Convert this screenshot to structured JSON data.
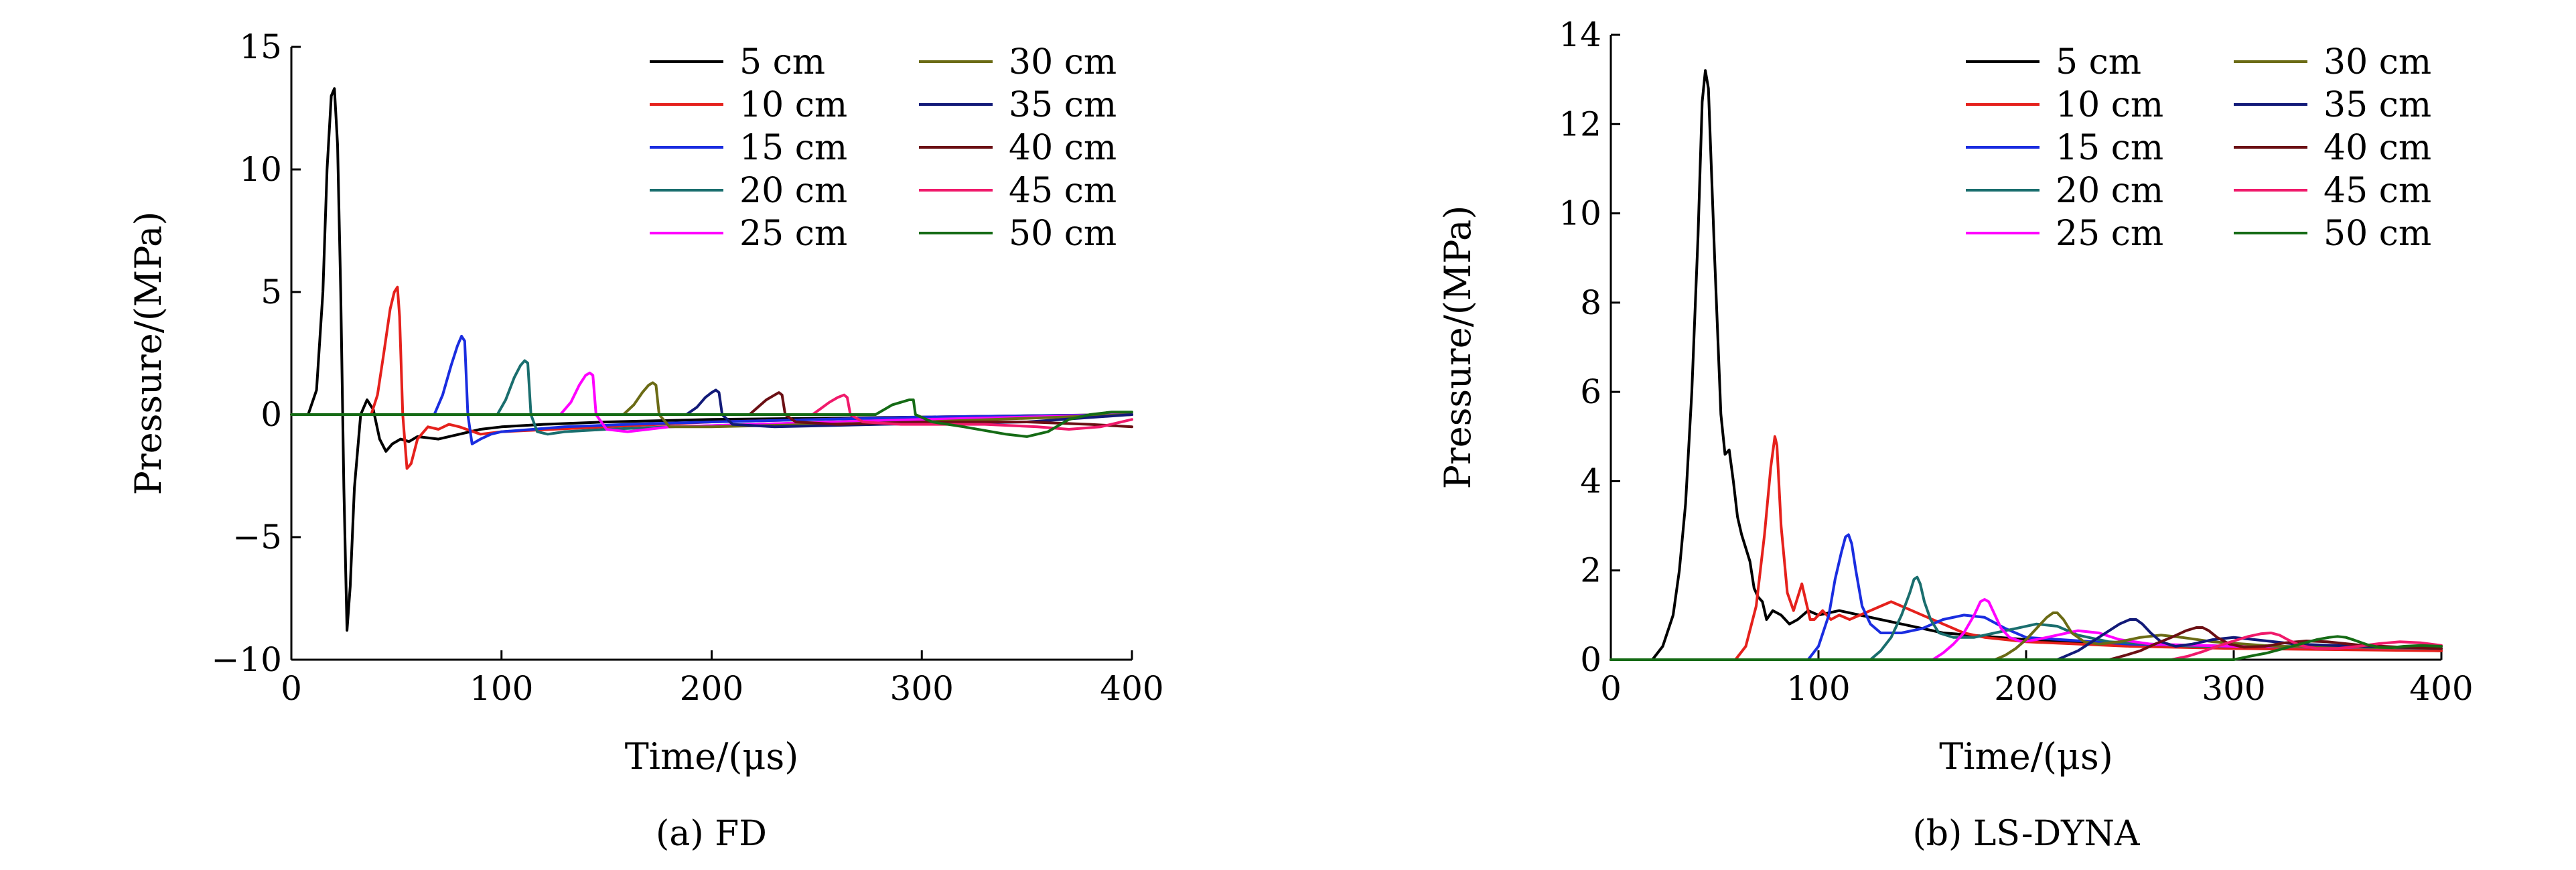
{
  "chart_data": [
    {
      "type": "line",
      "title": "(a) FD",
      "xlabel": "Time/(μs)",
      "ylabel": "Pressure/(MPa)",
      "xlim": [
        0,
        400
      ],
      "ylim": [
        -10,
        15
      ],
      "xticks": [
        0,
        100,
        200,
        300,
        400
      ],
      "yticks": [
        -10,
        -5,
        0,
        5,
        10,
        15
      ],
      "xtick_labels": [
        "0",
        "100",
        "200",
        "300",
        "400"
      ],
      "ytick_labels": [
        "−10",
        "−5",
        "0",
        "5",
        "10",
        "15"
      ],
      "legend_position": "top-right",
      "series": [
        {
          "name": "5 cm",
          "color": "#000000",
          "x": [
            0,
            8,
            12,
            15,
            17,
            19,
            20.5,
            22,
            23.5,
            25,
            26.5,
            28,
            30,
            33,
            36,
            39,
            42,
            45,
            48,
            52,
            56,
            60,
            70,
            80,
            90,
            100,
            120,
            150,
            200,
            250,
            300,
            350,
            400
          ],
          "y": [
            0,
            0,
            1,
            5,
            10,
            13,
            13.3,
            11,
            5,
            -3,
            -8.8,
            -7,
            -3,
            0,
            0.6,
            0.2,
            -1,
            -1.5,
            -1.2,
            -1,
            -1.1,
            -0.9,
            -1,
            -0.8,
            -0.6,
            -0.5,
            -0.4,
            -0.3,
            -0.2,
            -0.15,
            -0.1,
            -0.05,
            0
          ]
        },
        {
          "name": "10 cm",
          "color": "#e5211c",
          "x": [
            0,
            38,
            41,
            44,
            47,
            49,
            50.5,
            51.5,
            53,
            55,
            57,
            60,
            65,
            70,
            75,
            80,
            90,
            100,
            150,
            200,
            300,
            400
          ],
          "y": [
            0,
            0,
            0.8,
            2.5,
            4.3,
            5,
            5.2,
            4,
            0,
            -2.2,
            -2,
            -1,
            -0.5,
            -0.6,
            -0.4,
            -0.5,
            -0.8,
            -0.7,
            -0.5,
            -0.3,
            -0.1,
            0
          ]
        },
        {
          "name": "15 cm",
          "color": "#1a2de0",
          "x": [
            0,
            68,
            72,
            76,
            79,
            81,
            82.5,
            84,
            86,
            90,
            95,
            100,
            130,
            160,
            200,
            300,
            400
          ],
          "y": [
            0,
            0,
            0.8,
            2,
            2.8,
            3.2,
            3,
            0,
            -1.2,
            -1,
            -0.8,
            -0.7,
            -0.5,
            -0.4,
            -0.3,
            -0.1,
            0
          ]
        },
        {
          "name": "20 cm",
          "color": "#1a6e6e",
          "x": [
            0,
            98,
            102,
            106,
            109,
            111,
            112.5,
            114,
            117,
            122,
            130,
            150,
            180,
            220,
            300,
            400
          ],
          "y": [
            0,
            0,
            0.6,
            1.5,
            2,
            2.2,
            2.1,
            0,
            -0.7,
            -0.8,
            -0.7,
            -0.6,
            -0.5,
            -0.4,
            -0.2,
            0
          ]
        },
        {
          "name": "25 cm",
          "color": "#ff00ff",
          "x": [
            0,
            128,
            133,
            137,
            140,
            142,
            143.5,
            145,
            150,
            160,
            180,
            220,
            300,
            400
          ],
          "y": [
            0,
            0,
            0.5,
            1.2,
            1.6,
            1.7,
            1.6,
            0,
            -0.6,
            -0.7,
            -0.5,
            -0.4,
            -0.2,
            0
          ]
        },
        {
          "name": "30 cm",
          "color": "#6b6b15",
          "x": [
            0,
            158,
            163,
            167,
            170,
            172,
            173.5,
            175,
            180,
            200,
            250,
            300,
            400
          ],
          "y": [
            0,
            0,
            0.4,
            0.9,
            1.2,
            1.3,
            1.2,
            0,
            -0.5,
            -0.5,
            -0.4,
            -0.3,
            0
          ]
        },
        {
          "name": "35 cm",
          "color": "#121a78",
          "x": [
            0,
            188,
            193,
            197,
            200,
            202,
            203.5,
            205,
            210,
            230,
            280,
            350,
            400
          ],
          "y": [
            0,
            0,
            0.3,
            0.7,
            0.9,
            1,
            0.9,
            0,
            -0.4,
            -0.5,
            -0.4,
            -0.3,
            0
          ]
        },
        {
          "name": "40 cm",
          "color": "#6b0f14",
          "x": [
            0,
            218,
            222,
            226,
            230,
            232,
            233.5,
            235,
            240,
            260,
            300,
            350,
            380,
            400
          ],
          "y": [
            0,
            0,
            0.3,
            0.6,
            0.8,
            0.9,
            0.8,
            0,
            -0.3,
            -0.4,
            -0.3,
            -0.3,
            -0.4,
            -0.5
          ]
        },
        {
          "name": "45 cm",
          "color": "#f01a6b",
          "x": [
            0,
            248,
            252,
            256,
            260,
            263,
            264.5,
            266,
            272,
            290,
            330,
            355,
            370,
            385,
            400
          ],
          "y": [
            0,
            0,
            0.25,
            0.5,
            0.7,
            0.8,
            0.7,
            0,
            -0.3,
            -0.4,
            -0.4,
            -0.5,
            -0.6,
            -0.5,
            -0.2
          ]
        },
        {
          "name": "50 cm",
          "color": "#156b15",
          "x": [
            0,
            278,
            282,
            286,
            290,
            294,
            296,
            297,
            305,
            320,
            340,
            350,
            360,
            370,
            380,
            390,
            400
          ],
          "y": [
            0,
            0,
            0.2,
            0.4,
            0.5,
            0.6,
            0.6,
            0,
            -0.3,
            -0.5,
            -0.8,
            -0.9,
            -0.7,
            -0.2,
            0,
            0.1,
            0.1
          ]
        }
      ]
    },
    {
      "type": "line",
      "title": "(b) LS-DYNA",
      "xlabel": "Time/(μs)",
      "ylabel": "Pressure/(MPa)",
      "xlim": [
        0,
        400
      ],
      "ylim": [
        0,
        14
      ],
      "xticks": [
        0,
        100,
        200,
        300,
        400
      ],
      "yticks": [
        0,
        2,
        4,
        6,
        8,
        10,
        12,
        14
      ],
      "xtick_labels": [
        "0",
        "100",
        "200",
        "300",
        "400"
      ],
      "ytick_labels": [
        "0",
        "2",
        "4",
        "6",
        "8",
        "10",
        "12",
        "14"
      ],
      "legend_position": "top-right",
      "series": [
        {
          "name": "5 cm",
          "color": "#000000",
          "x": [
            0,
            20,
            25,
            30,
            33,
            36,
            39,
            42,
            44,
            45.5,
            47,
            50,
            53,
            55,
            57,
            59,
            61,
            63,
            65,
            67,
            69,
            71,
            73,
            75,
            78,
            82,
            86,
            90,
            95,
            100,
            110,
            120,
            140,
            160,
            200,
            250,
            300,
            350,
            400
          ],
          "y": [
            0,
            0,
            0.3,
            1,
            2,
            3.5,
            6,
            9.5,
            12.5,
            13.2,
            12.8,
            9,
            5.5,
            4.6,
            4.7,
            4,
            3.2,
            2.8,
            2.5,
            2.2,
            1.6,
            1.4,
            1.3,
            0.9,
            1.1,
            1,
            0.8,
            0.9,
            1.1,
            1,
            1.1,
            1,
            0.8,
            0.6,
            0.45,
            0.35,
            0.3,
            0.25,
            0.2
          ]
        },
        {
          "name": "10 cm",
          "color": "#e5211c",
          "x": [
            0,
            60,
            65,
            70,
            74,
            77,
            79,
            80,
            82,
            85,
            88,
            90,
            92,
            94,
            96,
            98,
            102,
            106,
            110,
            115,
            120,
            125,
            130,
            135,
            140,
            145,
            150,
            160,
            170,
            180,
            200,
            250,
            300,
            400
          ],
          "y": [
            0,
            0,
            0.3,
            1.2,
            2.8,
            4.3,
            5,
            4.8,
            3,
            1.5,
            1.1,
            1.4,
            1.7,
            1.3,
            0.9,
            0.9,
            1.1,
            0.9,
            1,
            0.9,
            1,
            1.1,
            1.2,
            1.3,
            1.2,
            1.1,
            1,
            0.8,
            0.6,
            0.5,
            0.4,
            0.3,
            0.25,
            0.2
          ]
        },
        {
          "name": "15 cm",
          "color": "#1a2de0",
          "x": [
            0,
            95,
            100,
            105,
            108,
            111,
            113,
            114.5,
            116,
            118,
            121,
            125,
            130,
            140,
            150,
            160,
            170,
            180,
            190,
            200,
            250,
            300,
            400
          ],
          "y": [
            0,
            0,
            0.3,
            1,
            1.8,
            2.4,
            2.75,
            2.8,
            2.6,
            2,
            1.2,
            0.8,
            0.6,
            0.6,
            0.7,
            0.9,
            1,
            0.95,
            0.7,
            0.5,
            0.35,
            0.3,
            0.25
          ]
        },
        {
          "name": "20 cm",
          "color": "#1a6e6e",
          "x": [
            0,
            125,
            130,
            135,
            140,
            144,
            146,
            147.5,
            149,
            151,
            154,
            158,
            165,
            175,
            185,
            195,
            205,
            215,
            225,
            240,
            280,
            320,
            400
          ],
          "y": [
            0,
            0,
            0.2,
            0.5,
            1,
            1.5,
            1.8,
            1.85,
            1.7,
            1.3,
            0.9,
            0.6,
            0.5,
            0.5,
            0.6,
            0.7,
            0.8,
            0.75,
            0.55,
            0.4,
            0.3,
            0.3,
            0.25
          ]
        },
        {
          "name": "25 cm",
          "color": "#ff00ff",
          "x": [
            0,
            155,
            160,
            165,
            170,
            175,
            178,
            180,
            182,
            185,
            188,
            192,
            198,
            205,
            215,
            225,
            235,
            245,
            260,
            300,
            400
          ],
          "y": [
            0,
            0,
            0.15,
            0.35,
            0.6,
            1,
            1.3,
            1.35,
            1.3,
            1,
            0.7,
            0.5,
            0.4,
            0.45,
            0.55,
            0.65,
            0.6,
            0.45,
            0.35,
            0.3,
            0.25
          ]
        },
        {
          "name": "30 cm",
          "color": "#6b6b15",
          "x": [
            0,
            185,
            190,
            195,
            200,
            205,
            210,
            213,
            215,
            218,
            222,
            228,
            235,
            245,
            255,
            265,
            275,
            290,
            320,
            400
          ],
          "y": [
            0,
            0,
            0.1,
            0.25,
            0.45,
            0.7,
            0.95,
            1.05,
            1.05,
            0.9,
            0.6,
            0.4,
            0.35,
            0.4,
            0.5,
            0.55,
            0.5,
            0.4,
            0.3,
            0.25
          ]
        },
        {
          "name": "35 cm",
          "color": "#121a78",
          "x": [
            0,
            215,
            220,
            225,
            230,
            235,
            240,
            245,
            250,
            253,
            256,
            260,
            265,
            272,
            280,
            290,
            300,
            310,
            330,
            360,
            400
          ],
          "y": [
            0,
            0,
            0.1,
            0.2,
            0.35,
            0.5,
            0.65,
            0.8,
            0.9,
            0.9,
            0.8,
            0.6,
            0.4,
            0.3,
            0.35,
            0.45,
            0.5,
            0.45,
            0.35,
            0.3,
            0.25
          ]
        },
        {
          "name": "40 cm",
          "color": "#6b0f14",
          "x": [
            0,
            240,
            248,
            255,
            262,
            270,
            277,
            282,
            285,
            288,
            292,
            298,
            305,
            315,
            325,
            335,
            345,
            360,
            380,
            400
          ],
          "y": [
            0,
            0,
            0.1,
            0.2,
            0.35,
            0.5,
            0.65,
            0.72,
            0.72,
            0.65,
            0.5,
            0.35,
            0.28,
            0.3,
            0.38,
            0.42,
            0.4,
            0.33,
            0.28,
            0.25
          ]
        },
        {
          "name": "45 cm",
          "color": "#f01a6b",
          "x": [
            0,
            270,
            278,
            285,
            292,
            300,
            307,
            313,
            318,
            322,
            326,
            332,
            340,
            350,
            360,
            370,
            380,
            390,
            400
          ],
          "y": [
            0,
            0,
            0.08,
            0.18,
            0.3,
            0.42,
            0.52,
            0.58,
            0.6,
            0.55,
            0.45,
            0.32,
            0.25,
            0.25,
            0.3,
            0.36,
            0.4,
            0.38,
            0.32
          ]
        },
        {
          "name": "50 cm",
          "color": "#156b15",
          "x": [
            0,
            300,
            308,
            316,
            324,
            332,
            340,
            346,
            350,
            354,
            358,
            364,
            370,
            376,
            382,
            390,
            400
          ],
          "y": [
            0,
            0,
            0.08,
            0.15,
            0.25,
            0.35,
            0.45,
            0.5,
            0.52,
            0.5,
            0.44,
            0.34,
            0.28,
            0.27,
            0.3,
            0.32,
            0.3
          ]
        }
      ]
    }
  ]
}
